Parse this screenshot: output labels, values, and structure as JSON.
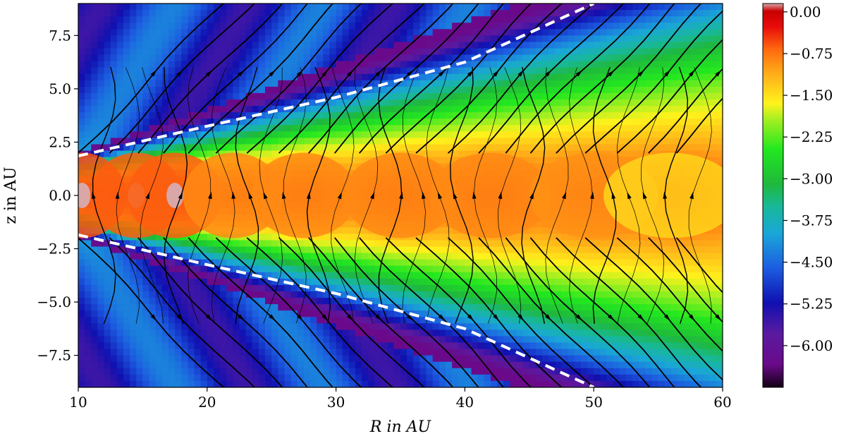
{
  "chart_data": {
    "type": "heatmap",
    "title": "",
    "xlabel": "R in AU",
    "ylabel": "z in AU",
    "xlim": [
      10,
      60
    ],
    "ylim": [
      -9,
      9
    ],
    "xticks": [
      10,
      20,
      30,
      40,
      50,
      60
    ],
    "xtick_labels": [
      "10",
      "20",
      "30",
      "40",
      "50",
      "60"
    ],
    "yticks": [
      7.5,
      5.0,
      2.5,
      0.0,
      -2.5,
      -5.0,
      -7.5
    ],
    "ytick_labels": [
      "7.5",
      "5.0",
      "2.5",
      "0.0",
      "−2.5",
      "−5.0",
      "−7.5"
    ],
    "colorbar": {
      "range": [
        -6.75,
        0.15
      ],
      "ticks": [
        0.0,
        -0.75,
        -1.5,
        -2.25,
        -3.0,
        -3.75,
        -4.5,
        -5.25,
        -6.0
      ],
      "tick_labels": [
        "0.00",
        "−0.75",
        "−1.50",
        "−2.25",
        "−3.00",
        "−3.75",
        "−4.50",
        "−5.25",
        "−6.00"
      ],
      "colormap": "spectral-like (black → purple → blue → cyan → green → yellow → orange → red → pink)"
    },
    "dashed_lines": [
      {
        "color": "#ffffff",
        "points": [
          [
            10,
            1.85
          ],
          [
            20,
            3.25
          ],
          [
            30,
            4.6
          ],
          [
            40,
            6.25
          ],
          [
            50,
            9.0
          ]
        ]
      },
      {
        "color": "#ffffff",
        "points": [
          [
            10,
            -1.85
          ],
          [
            20,
            -3.25
          ],
          [
            30,
            -4.6
          ],
          [
            40,
            -6.25
          ],
          [
            50,
            -9.0
          ]
        ]
      }
    ],
    "overlay": "streamlines (black, with arrowheads)",
    "midplane_maxima": [
      {
        "R": 10.3,
        "value": -0.5
      },
      {
        "R": 14.5,
        "value": -0.55
      },
      {
        "R": 17.5,
        "value": -0.55
      },
      {
        "R": 22,
        "value": -0.8
      },
      {
        "R": 27.5,
        "value": -0.8
      },
      {
        "R": 35,
        "value": -0.8
      },
      {
        "R": 42,
        "value": -0.8
      },
      {
        "R": 50,
        "value": -0.85
      },
      {
        "R": 56,
        "value": -1.3
      }
    ]
  },
  "colors": {
    "background": "#ffffff",
    "dashed_line": "#ffffff",
    "streamline": "#000000"
  }
}
